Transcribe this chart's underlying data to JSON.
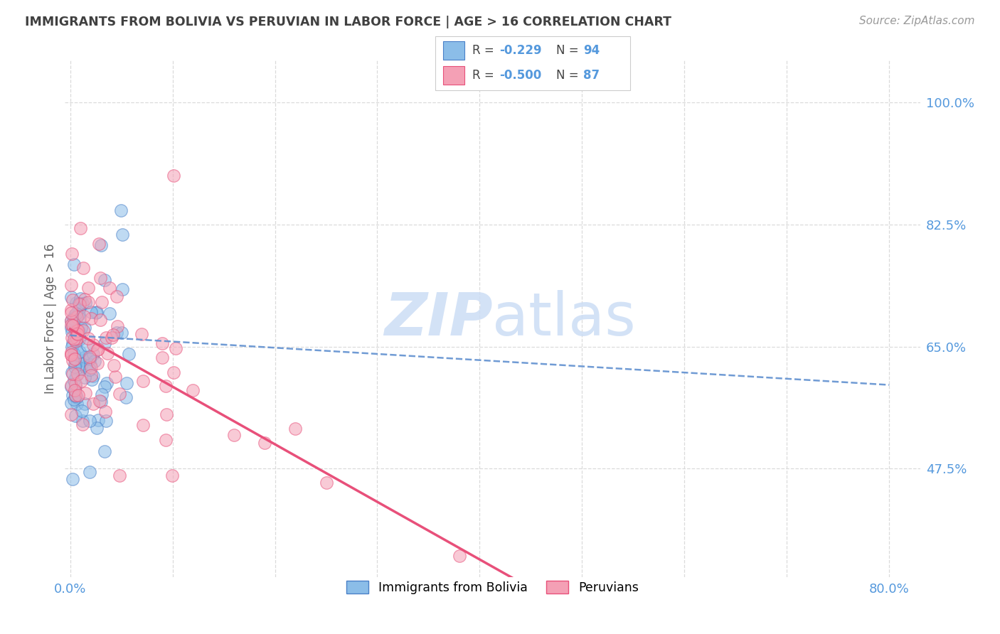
{
  "title": "IMMIGRANTS FROM BOLIVIA VS PERUVIAN IN LABOR FORCE | AGE > 16 CORRELATION CHART",
  "source": "Source: ZipAtlas.com",
  "ylabel": "In Labor Force | Age > 16",
  "x_ticks": [
    0.0,
    0.1,
    0.2,
    0.3,
    0.4,
    0.5,
    0.6,
    0.7,
    0.8
  ],
  "y_ticks_right": [
    0.475,
    0.65,
    0.825,
    1.0
  ],
  "y_tick_labels_right": [
    "47.5%",
    "65.0%",
    "82.5%",
    "100.0%"
  ],
  "xlim": [
    -0.005,
    0.83
  ],
  "ylim": [
    0.32,
    1.06
  ],
  "legend_r1": "-0.229",
  "legend_n1": "94",
  "legend_r2": "-0.500",
  "legend_n2": "87",
  "legend_label1": "Immigrants from Bolivia",
  "legend_label2": "Peruvians",
  "bolivia_color": "#8bbde8",
  "peru_color": "#f4a0b5",
  "bolivia_edge_color": "#4a80c8",
  "peru_edge_color": "#e8507a",
  "bolivia_trend_color": "#6090d0",
  "peru_trend_color": "#e8507a",
  "watermark_zip": "ZIP",
  "watermark_atlas": "atlas",
  "watermark_color": "#ccddf5",
  "grid_color": "#d8d8d8",
  "title_color": "#404040",
  "axis_label_color": "#606060",
  "right_tick_color": "#5599dd",
  "bottom_tick_color": "#5599dd",
  "bolivia_trend_start_y": 0.666,
  "bolivia_trend_end_x": 0.8,
  "bolivia_trend_end_y": 0.595,
  "peru_trend_start_y": 0.675,
  "peru_trend_end_x": 0.8,
  "peru_trend_end_y": 0.015
}
